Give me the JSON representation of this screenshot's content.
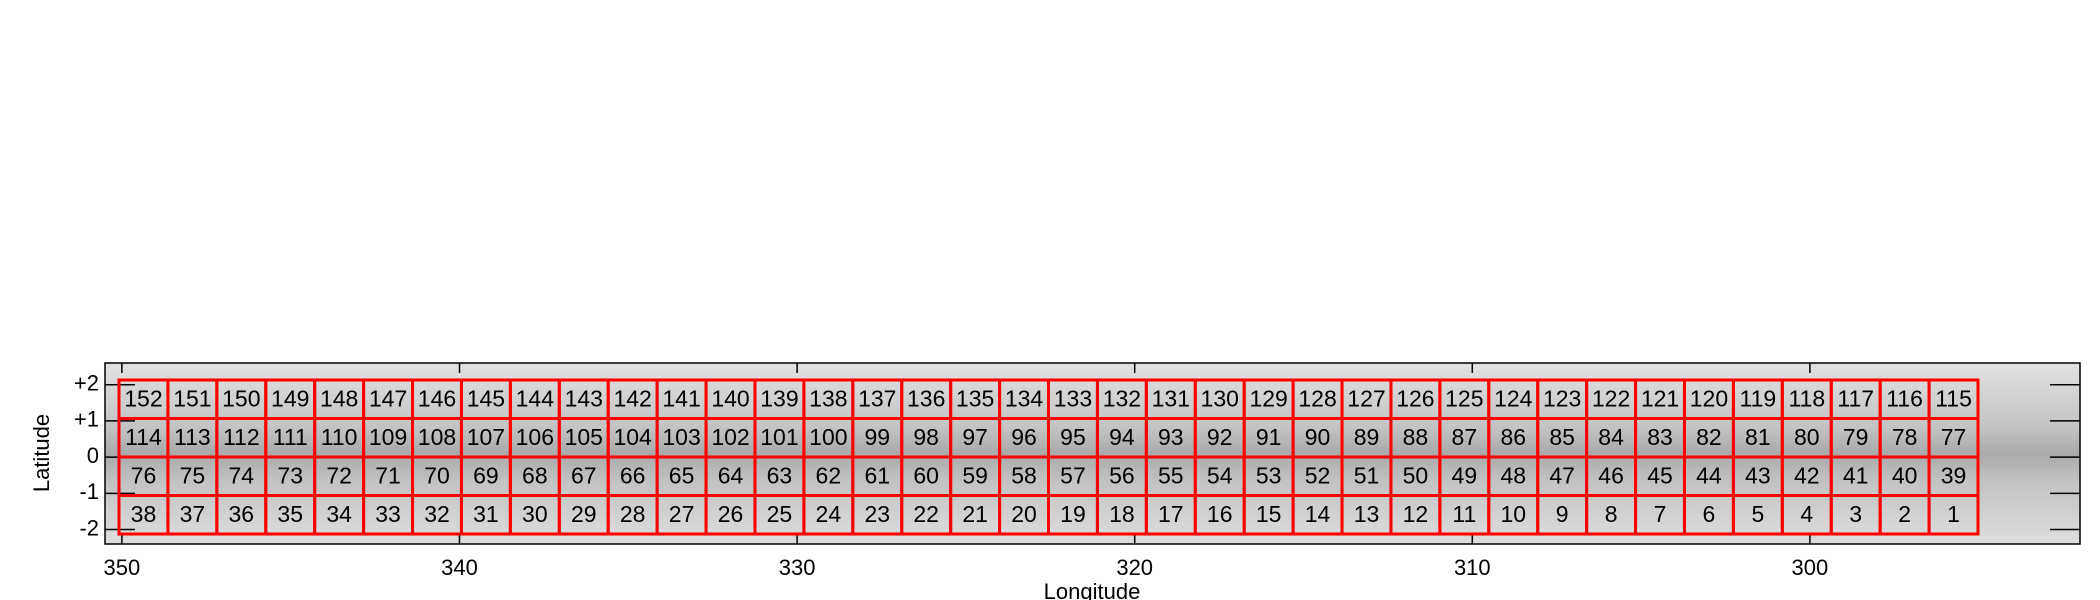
{
  "chart_data": {
    "type": "tile-grid",
    "x_label": "Longitude",
    "y_label": "Latitude",
    "xlim": [
      350.5,
      292
    ],
    "xticks": [
      350,
      340,
      330,
      320,
      310,
      300
    ],
    "ylim": [
      -2.4,
      2.6
    ],
    "yticks": [
      {
        "value": 2,
        "label": "+2"
      },
      {
        "value": 1,
        "label": "+1"
      },
      0,
      -1,
      -2
    ],
    "tile_color": "#ff0000",
    "tile_grid": [
      [
        152,
        151,
        150,
        149,
        148,
        147,
        146,
        145,
        144,
        143,
        142,
        141,
        140,
        139,
        138,
        137,
        136,
        135,
        134,
        133,
        132,
        131,
        130,
        129,
        128,
        127,
        126,
        125,
        124,
        123,
        122,
        121,
        120,
        119,
        118,
        117,
        116,
        115
      ],
      [
        114,
        113,
        112,
        111,
        110,
        109,
        108,
        107,
        106,
        105,
        104,
        103,
        102,
        101,
        100,
        99,
        98,
        97,
        96,
        95,
        94,
        93,
        92,
        91,
        90,
        89,
        88,
        87,
        86,
        85,
        84,
        83,
        82,
        81,
        80,
        79,
        78,
        77
      ],
      [
        76,
        75,
        74,
        73,
        72,
        71,
        70,
        69,
        68,
        67,
        66,
        65,
        64,
        63,
        62,
        61,
        60,
        59,
        58,
        57,
        56,
        55,
        54,
        53,
        52,
        51,
        50,
        49,
        48,
        47,
        46,
        45,
        44,
        43,
        42,
        41,
        40,
        39
      ],
      [
        38,
        37,
        36,
        35,
        34,
        33,
        32,
        31,
        30,
        29,
        28,
        27,
        26,
        25,
        24,
        23,
        22,
        21,
        20,
        19,
        18,
        17,
        16,
        15,
        14,
        13,
        12,
        11,
        10,
        9,
        8,
        7,
        6,
        5,
        4,
        3,
        2,
        1
      ]
    ]
  }
}
